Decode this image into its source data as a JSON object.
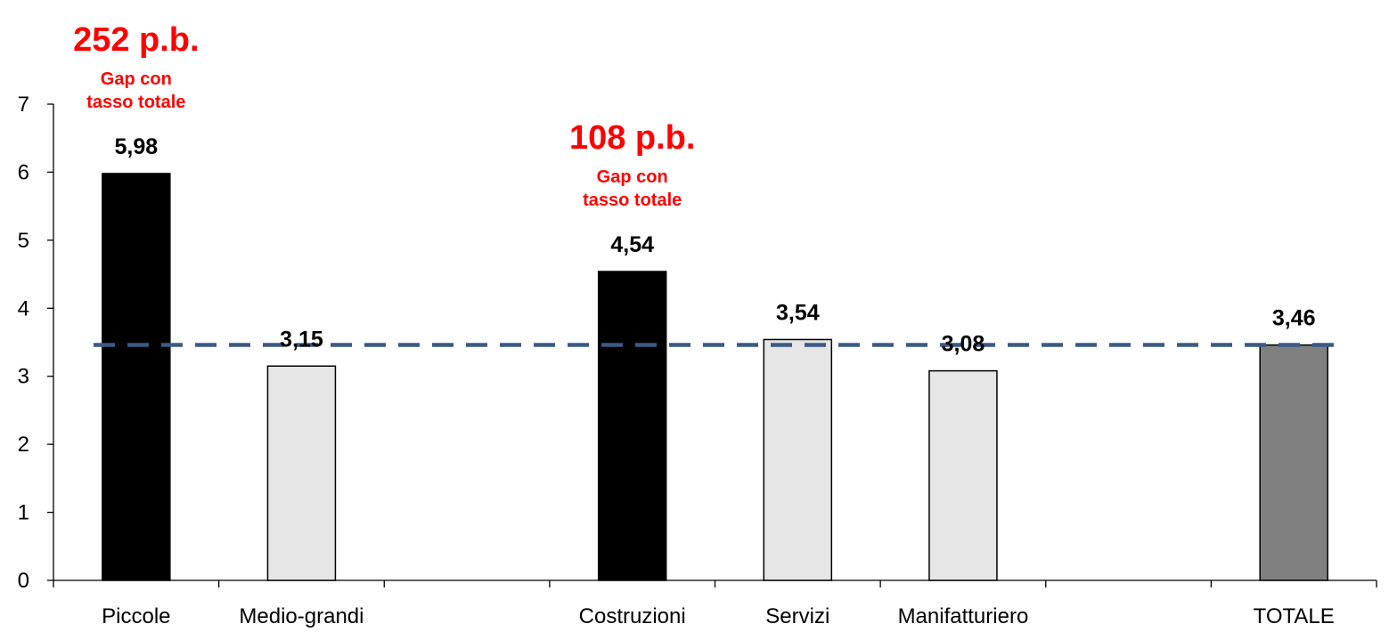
{
  "chart_data": {
    "type": "bar",
    "categories": [
      "Piccole",
      "Medio-grandi",
      "",
      "Costruzioni",
      "Servizi",
      "Manifatturiero",
      "",
      "TOTALE"
    ],
    "values": [
      5.98,
      3.15,
      null,
      4.54,
      3.54,
      3.08,
      null,
      3.46
    ],
    "value_labels": [
      "5,98",
      "3,15",
      "",
      "4,54",
      "3,54",
      "3,08",
      "",
      "3,46"
    ],
    "bar_colors": [
      "#000000",
      "#e6e6e6",
      "",
      "#000000",
      "#e6e6e6",
      "#e6e6e6",
      "",
      "#808080"
    ],
    "ylim": [
      0,
      7
    ],
    "yticks": [
      0,
      1,
      2,
      3,
      4,
      5,
      6,
      7
    ],
    "reference_line": {
      "value": 3.46,
      "style": "dashed",
      "color": "#3b5a85"
    },
    "annotations": [
      {
        "category_index": 0,
        "main": "252 p.b.",
        "line1": "Gap con",
        "line2": "tasso totale",
        "color": "#ff0000"
      },
      {
        "category_index": 3,
        "main": "108 p.b.",
        "line1": "Gap con",
        "line2": "tasso totale",
        "color": "#ff0000"
      }
    ],
    "title": "",
    "xlabel": "",
    "ylabel": "",
    "grid": false,
    "legend": "none"
  }
}
